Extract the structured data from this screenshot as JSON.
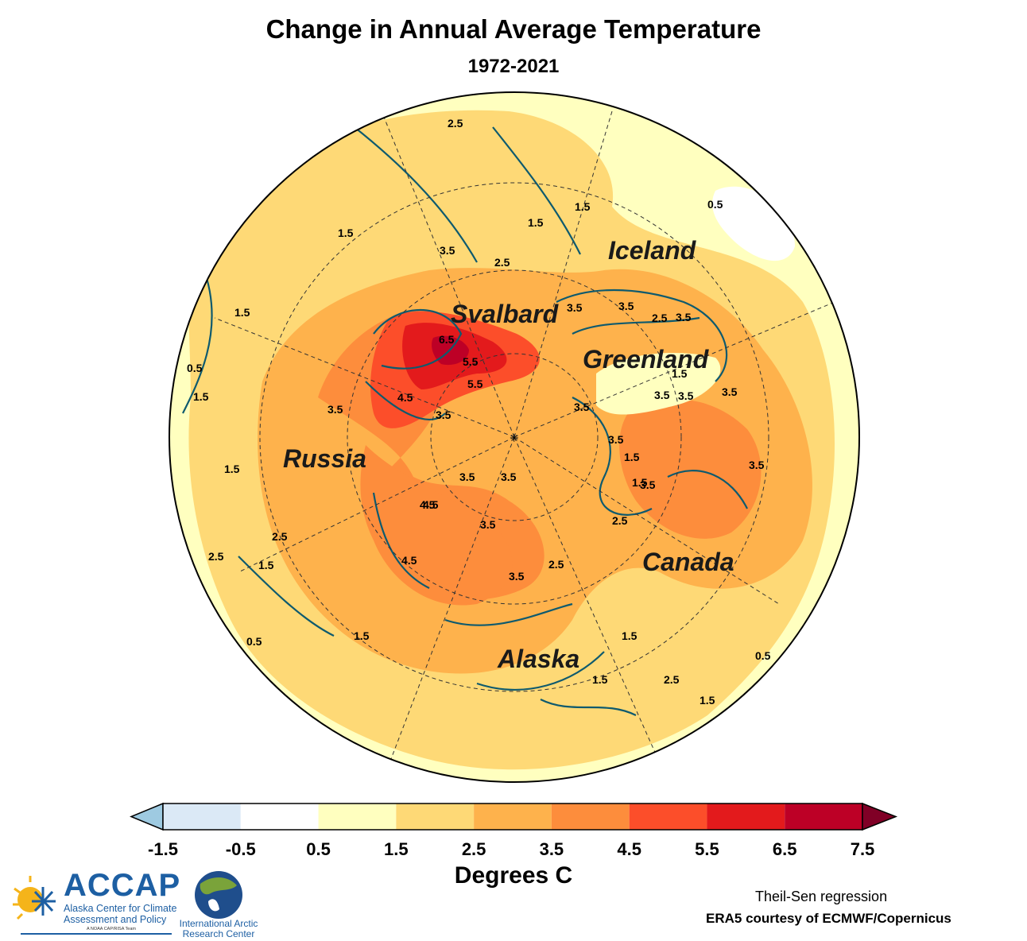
{
  "title": "Change in Annual Average Temperature",
  "subtitle": "1972-2021",
  "map_labels": {
    "iceland": "Iceland",
    "svalbard": "Svalbard",
    "greenland": "Greenland",
    "russia": "Russia",
    "canada": "Canada",
    "alaska": "Alaska"
  },
  "contour_labels": [
    "2.5",
    "1.5",
    "1.5",
    "3.5",
    "2.5",
    "1.5",
    "1.5",
    "0.5",
    "0.5",
    "1.5",
    "3.5",
    "3.5",
    "3.5",
    "2.5",
    "3.5",
    "6.5",
    "5.5",
    "5.5",
    "4.5",
    "4.5",
    "3.5",
    "3.5",
    "1.5",
    "1.5",
    "2.5",
    "2.5",
    "1.5",
    "1.5",
    "3.5",
    "3.5",
    "3.5",
    "3.5",
    "3.5",
    "3.5",
    "4.5",
    "4.5",
    "3.5",
    "3.5",
    "2.5",
    "1.5",
    "1.5",
    "2.5",
    "1.5",
    "0.5",
    "0.5",
    "1.5",
    "3.5",
    "3.5",
    "1.5",
    "2.5"
  ],
  "colorbar": {
    "ticks": [
      "-1.5",
      "-0.5",
      "0.5",
      "1.5",
      "2.5",
      "3.5",
      "4.5",
      "5.5",
      "6.5",
      "7.5"
    ],
    "colors": [
      "#dbe9f6",
      "#ffffff",
      "#ffffbf",
      "#fed976",
      "#feb24c",
      "#fd8d3c",
      "#fc4e2a",
      "#e31a1c",
      "#bd0026"
    ],
    "under_color": "#9ecae1",
    "over_color": "#800026"
  },
  "units_label": "Degrees C",
  "method": "Theil-Sen regression",
  "source": "ERA5 courtesy of ECMWF/Copernicus",
  "logos": {
    "accap": {
      "name": "ACCAP",
      "line1": "Alaska Center for Climate",
      "line2": "Assessment and Policy",
      "tagline": "A NOAA CAP/RISA Team"
    },
    "iarc": {
      "line1": "International Arctic",
      "line2": "Research Center"
    }
  }
}
